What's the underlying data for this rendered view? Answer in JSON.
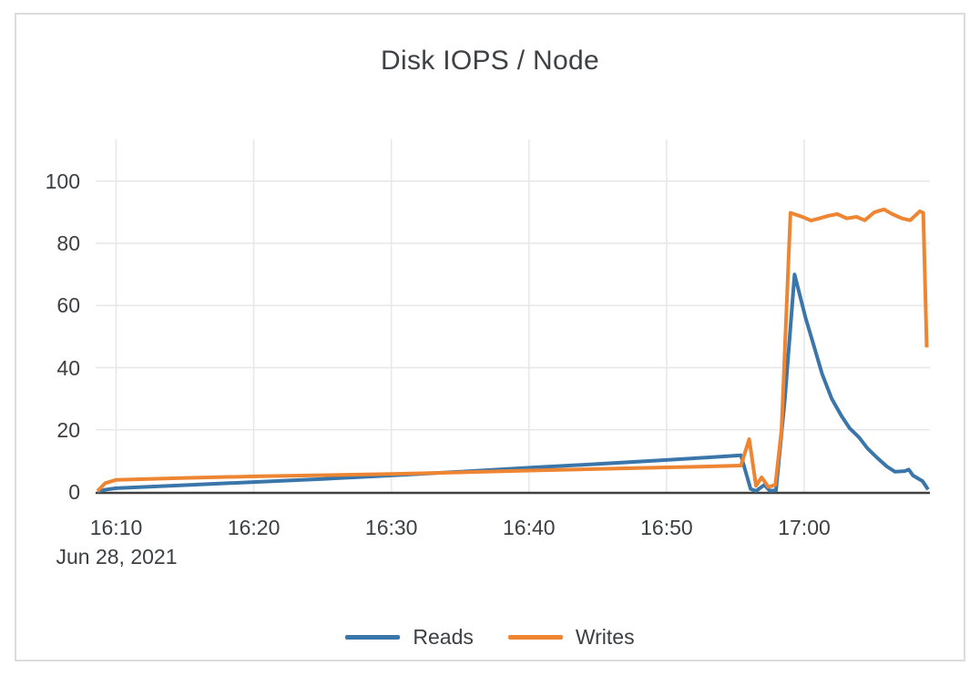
{
  "card": {
    "title": "Disk IOPS / Node"
  },
  "colors": {
    "reads": "#3b76ab",
    "writes": "#ee8533",
    "gridline": "#e8e8e8",
    "axis": "#3f3f3f",
    "text": "#3c4043",
    "card_border": "#dcdcdc"
  },
  "chart_data": {
    "type": "line",
    "title": "Disk IOPS / Node",
    "xlabel": "",
    "ylabel": "",
    "x_unit": "minutes after 16:00 on Jun 28, 2021",
    "x_date_label": "Jun 28, 2021",
    "x_ticks": [
      {
        "t": 10,
        "label": "16:10"
      },
      {
        "t": 20,
        "label": "16:20"
      },
      {
        "t": 30,
        "label": "16:30"
      },
      {
        "t": 40,
        "label": "16:40"
      },
      {
        "t": 50,
        "label": "16:50"
      },
      {
        "t": 60,
        "label": "17:00"
      }
    ],
    "y_ticks": [
      0,
      20,
      40,
      60,
      80,
      100
    ],
    "xlim_minutes": [
      8.6,
      69.1
    ],
    "ylim": [
      0,
      113.5
    ],
    "grid": true,
    "legend_position": "bottom",
    "series": [
      {
        "name": "Reads",
        "color": "#3b76ab",
        "points": [
          [
            8.65,
            0.2
          ],
          [
            9.3,
            0.8
          ],
          [
            10,
            1.2
          ],
          [
            15,
            2.2
          ],
          [
            20,
            3.2
          ],
          [
            25,
            4.2
          ],
          [
            30,
            5.3
          ],
          [
            35,
            6.5
          ],
          [
            40,
            7.8
          ],
          [
            45,
            9.0
          ],
          [
            50,
            10.3
          ],
          [
            53,
            11.1
          ],
          [
            55.4,
            11.8
          ],
          [
            56.1,
            1.0
          ],
          [
            56.5,
            0.3
          ],
          [
            57.1,
            2.3
          ],
          [
            57.5,
            0.4
          ],
          [
            57.95,
            0.5
          ],
          [
            58.6,
            30
          ],
          [
            59.3,
            70
          ],
          [
            60.1,
            56
          ],
          [
            60.7,
            47
          ],
          [
            61.3,
            38
          ],
          [
            62.0,
            30
          ],
          [
            62.7,
            24.5
          ],
          [
            63.3,
            20.5
          ],
          [
            64.0,
            17.5
          ],
          [
            64.6,
            14
          ],
          [
            65.3,
            11
          ],
          [
            66.0,
            8.2
          ],
          [
            66.6,
            6.5
          ],
          [
            67.3,
            6.7
          ],
          [
            67.6,
            7.2
          ],
          [
            67.9,
            5.3
          ],
          [
            68.6,
            3.5
          ],
          [
            69.0,
            0.8
          ]
        ]
      },
      {
        "name": "Writes",
        "color": "#ee8533",
        "points": [
          [
            8.65,
            0.3
          ],
          [
            9.2,
            2.8
          ],
          [
            10,
            3.9
          ],
          [
            15,
            4.5
          ],
          [
            20,
            5.0
          ],
          [
            25,
            5.4
          ],
          [
            30,
            5.8
          ],
          [
            35,
            6.3
          ],
          [
            40,
            6.9
          ],
          [
            45,
            7.4
          ],
          [
            50,
            7.9
          ],
          [
            53,
            8.2
          ],
          [
            55.4,
            8.5
          ],
          [
            56.0,
            17
          ],
          [
            56.5,
            2.0
          ],
          [
            56.9,
            4.7
          ],
          [
            57.4,
            1.6
          ],
          [
            57.9,
            2.3
          ],
          [
            58.35,
            20
          ],
          [
            59.0,
            89.8
          ],
          [
            59.8,
            88.6
          ],
          [
            60.5,
            87.3
          ],
          [
            61.1,
            88.0
          ],
          [
            61.8,
            88.9
          ],
          [
            62.4,
            89.4
          ],
          [
            63.1,
            88.0
          ],
          [
            63.8,
            88.5
          ],
          [
            64.4,
            87.4
          ],
          [
            65.1,
            90.0
          ],
          [
            65.8,
            90.9
          ],
          [
            66.4,
            89.4
          ],
          [
            67.1,
            88.0
          ],
          [
            67.7,
            87.4
          ],
          [
            68.4,
            90.3
          ],
          [
            68.65,
            89.8
          ],
          [
            68.9,
            46.5
          ]
        ]
      }
    ]
  }
}
